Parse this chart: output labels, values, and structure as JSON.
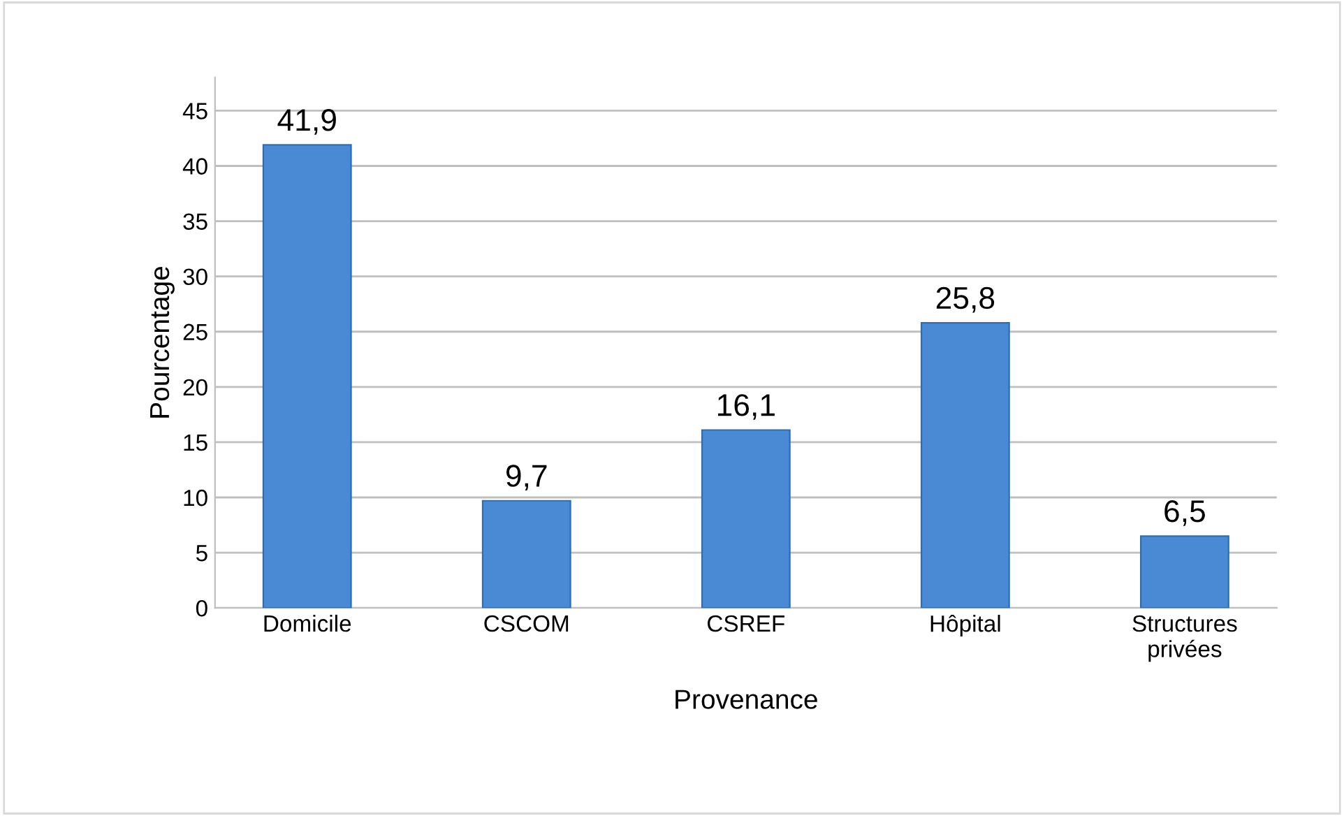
{
  "chart_data": {
    "type": "bar",
    "categories": [
      "Domicile",
      "CSCOM",
      "CSREF",
      "Hôpital",
      "Structures\nprivées"
    ],
    "values": [
      41.9,
      9.7,
      16.1,
      25.8,
      6.5
    ],
    "value_labels": [
      "41,9",
      "9,7",
      "16,1",
      "25,8",
      "6,5"
    ],
    "color": "#4a8ad4",
    "xlabel": "Provenance",
    "ylabel": "Pourcentage",
    "ylim": [
      0,
      48
    ],
    "yticks": [
      0,
      5,
      10,
      15,
      20,
      25,
      30,
      35,
      40,
      45
    ],
    "grid": "y"
  }
}
